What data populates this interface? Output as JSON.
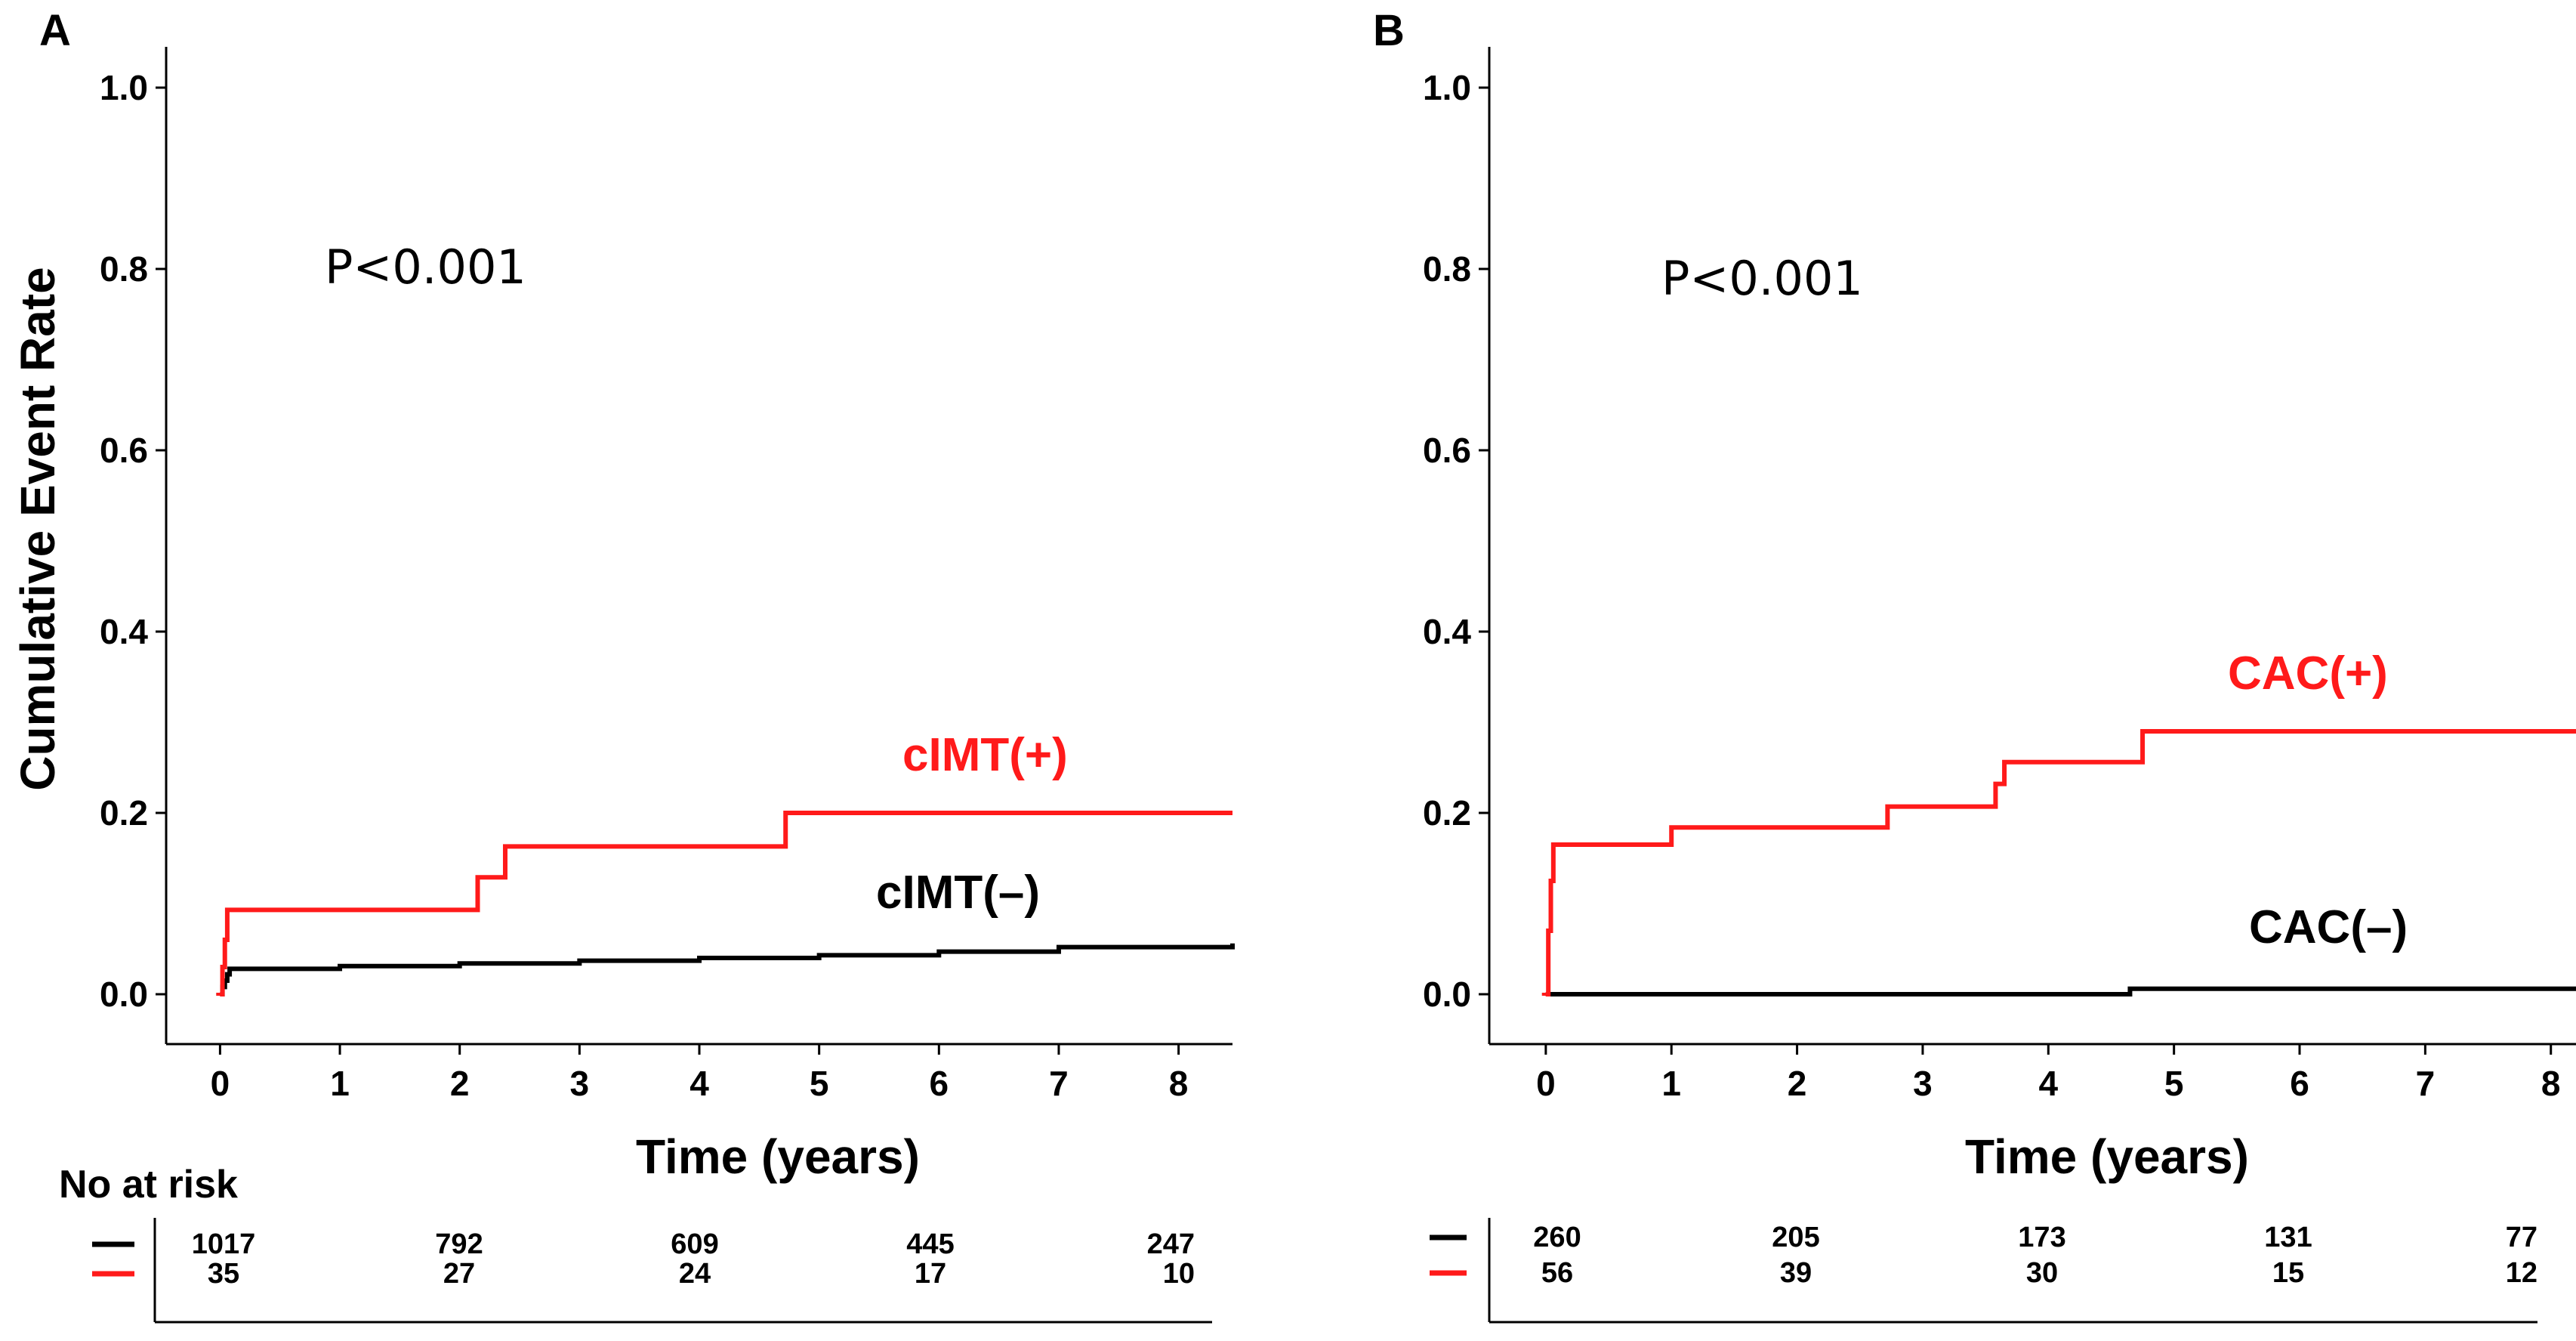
{
  "chart_data": [
    {
      "type": "line",
      "step": true,
      "panel": "A",
      "pvalue_text": "P<0.001",
      "xlabel": "Time (years)",
      "ylabel": "Cumulative Event Rate",
      "xlim": [
        -0.45,
        8.45
      ],
      "ylim": [
        -0.055,
        1.045
      ],
      "xticks": [
        0,
        1,
        2,
        3,
        4,
        5,
        6,
        7,
        8
      ],
      "yticks": [
        0.0,
        0.2,
        0.4,
        0.6,
        0.8,
        1.0
      ],
      "ytick_labels": [
        "0.0",
        "0.2",
        "0.4",
        "0.6",
        "0.8",
        "1.0"
      ],
      "series": [
        {
          "name": "cIMT(−)",
          "label_text": "cIMT(–)",
          "color": "#000000",
          "x": [
            0,
            0.02,
            0.04,
            0.06,
            0.08,
            1.0,
            2.0,
            3.0,
            4.0,
            5.0,
            6.0,
            7.0,
            8.45
          ],
          "y": [
            0,
            0.008,
            0.015,
            0.022,
            0.028,
            0.031,
            0.034,
            0.037,
            0.04,
            0.043,
            0.047,
            0.052,
            0.056
          ]
        },
        {
          "name": "cIMT(+)",
          "label_text": "cIMT(+)",
          "color": "#ff1a1a",
          "x": [
            0,
            0.02,
            0.04,
            0.06,
            2.15,
            2.38,
            4.72,
            8.45
          ],
          "y": [
            0,
            0.03,
            0.06,
            0.093,
            0.129,
            0.163,
            0.2,
            0.2
          ]
        }
      ],
      "risk_table": {
        "title": "No at risk",
        "times": [
          0,
          2,
          4,
          6,
          8
        ],
        "rows": [
          {
            "color": "#000000",
            "values": [
              "1017",
              "792",
              "609",
              "445",
              "247"
            ]
          },
          {
            "color": "#ff1a1a",
            "values": [
              "35",
              "27",
              "24",
              "17",
              "10"
            ]
          }
        ]
      }
    },
    {
      "type": "line",
      "step": true,
      "panel": "B",
      "pvalue_text": "P<0.001",
      "xlabel": "Time (years)",
      "ylabel": "",
      "xlim": [
        -0.45,
        8.2
      ],
      "ylim": [
        -0.055,
        1.045
      ],
      "xticks": [
        0,
        1,
        2,
        3,
        4,
        5,
        6,
        7,
        8
      ],
      "yticks": [
        0.0,
        0.2,
        0.4,
        0.6,
        0.8,
        1.0
      ],
      "ytick_labels": [
        "0.0",
        "0.2",
        "0.4",
        "0.6",
        "0.8",
        "1.0"
      ],
      "series": [
        {
          "name": "CAC(−)",
          "label_text": "CAC(–)",
          "color": "#000000",
          "x": [
            0,
            4.65,
            8.2
          ],
          "y": [
            0,
            0.006,
            0.006
          ]
        },
        {
          "name": "CAC(+)",
          "label_text": "CAC(+)",
          "color": "#ff1a1a",
          "x": [
            0,
            0.02,
            0.04,
            0.06,
            1.0,
            2.72,
            3.58,
            3.65,
            4.75,
            8.2
          ],
          "y": [
            0,
            0.07,
            0.125,
            0.165,
            0.184,
            0.207,
            0.232,
            0.256,
            0.29,
            0.29
          ]
        }
      ],
      "risk_table": {
        "title": "",
        "times": [
          0,
          2,
          4,
          6,
          8
        ],
        "rows": [
          {
            "color": "#000000",
            "values": [
              "260",
              "205",
              "173",
              "131",
              "77"
            ]
          },
          {
            "color": "#ff1a1a",
            "values": [
              "56",
              "39",
              "30",
              "15",
              "12"
            ]
          }
        ]
      }
    }
  ]
}
